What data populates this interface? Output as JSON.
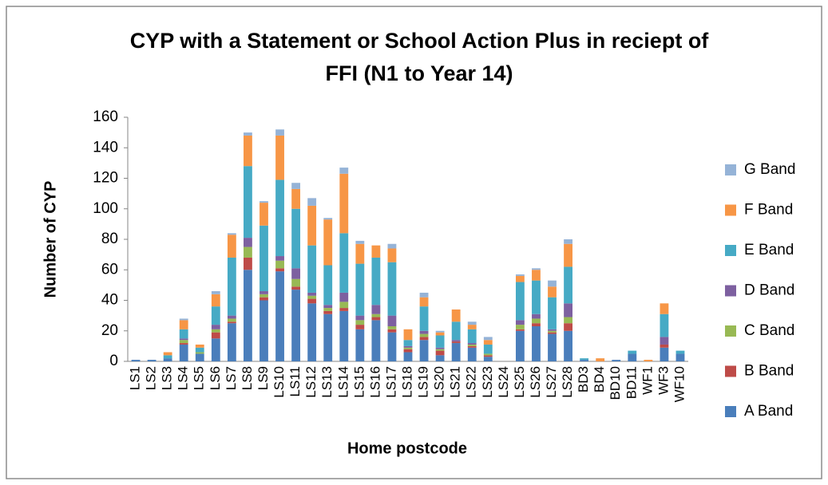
{
  "chart_data": {
    "type": "stacked_bar",
    "title": [
      "CYP with a Statement or School Action Plus in reciept of",
      "FFI (N1 to Year 14)"
    ],
    "x_label": "Home postcode",
    "y_label": "Number of CYP",
    "categories": [
      "LS1",
      "LS2",
      "LS3",
      "LS4",
      "LS5",
      "LS6",
      "LS7",
      "LS8",
      "LS9",
      "LS10",
      "LS11",
      "LS12",
      "LS13",
      "LS14",
      "LS15",
      "LS16",
      "LS17",
      "LS18",
      "LS19",
      "LS20",
      "LS21",
      "LS22",
      "LS23",
      "LS24",
      "LS25",
      "LS26",
      "LS27",
      "LS28",
      "BD3",
      "BD4",
      "BD10",
      "BD11",
      "WF1",
      "WF3",
      "WF10"
    ],
    "series": [
      {
        "name": "A Band",
        "color": "#4a7ebb",
        "values": [
          1,
          1,
          2,
          11,
          5,
          15,
          25,
          60,
          40,
          59,
          47,
          38,
          31,
          33,
          21,
          27,
          19,
          6,
          14,
          4,
          12,
          9,
          3,
          0,
          20,
          23,
          18,
          20,
          1,
          0,
          1,
          5,
          0,
          9,
          5
        ]
      },
      {
        "name": "B Band",
        "color": "#be4b48",
        "values": [
          0,
          0,
          0,
          1,
          0,
          4,
          1,
          8,
          2,
          2,
          2,
          3,
          2,
          2,
          3,
          2,
          2,
          2,
          2,
          3,
          1,
          1,
          1,
          0,
          1,
          2,
          1,
          5,
          0,
          0,
          0,
          0,
          0,
          2,
          0
        ]
      },
      {
        "name": "C Band",
        "color": "#98b954",
        "values": [
          0,
          0,
          0,
          2,
          1,
          2,
          2,
          7,
          2,
          5,
          5,
          2,
          2,
          4,
          3,
          2,
          2,
          1,
          2,
          1,
          0,
          1,
          1,
          0,
          3,
          3,
          1,
          4,
          0,
          0,
          0,
          0,
          0,
          0,
          0
        ]
      },
      {
        "name": "D Band",
        "color": "#7d60a0",
        "values": [
          0,
          0,
          0,
          1,
          0,
          3,
          2,
          6,
          2,
          3,
          7,
          2,
          2,
          6,
          3,
          6,
          7,
          1,
          2,
          1,
          1,
          1,
          0,
          0,
          3,
          3,
          1,
          9,
          0,
          0,
          0,
          0,
          0,
          5,
          0
        ]
      },
      {
        "name": "E Band",
        "color": "#46aac5",
        "values": [
          0,
          0,
          2,
          6,
          3,
          12,
          38,
          47,
          43,
          50,
          39,
          31,
          26,
          39,
          34,
          31,
          35,
          4,
          16,
          8,
          12,
          9,
          6,
          0,
          25,
          22,
          21,
          24,
          1,
          0,
          0,
          2,
          0,
          15,
          2
        ]
      },
      {
        "name": "F Band",
        "color": "#f79646",
        "values": [
          0,
          0,
          2,
          6,
          2,
          8,
          15,
          20,
          15,
          29,
          13,
          26,
          30,
          39,
          13,
          8,
          9,
          7,
          6,
          2,
          8,
          3,
          3,
          0,
          4,
          7,
          7,
          15,
          0,
          2,
          0,
          0,
          1,
          7,
          0
        ]
      },
      {
        "name": "G Band",
        "color": "#95b3d7",
        "values": [
          0,
          0,
          0,
          1,
          0,
          2,
          1,
          2,
          1,
          4,
          4,
          5,
          1,
          4,
          2,
          0,
          3,
          0,
          3,
          1,
          0,
          2,
          2,
          0,
          1,
          1,
          4,
          3,
          0,
          0,
          0,
          0,
          0,
          0,
          0
        ]
      }
    ],
    "ylim": [
      0,
      160
    ],
    "yticks": [
      0,
      20,
      40,
      60,
      80,
      100,
      120,
      140,
      160
    ],
    "legend": "right"
  }
}
